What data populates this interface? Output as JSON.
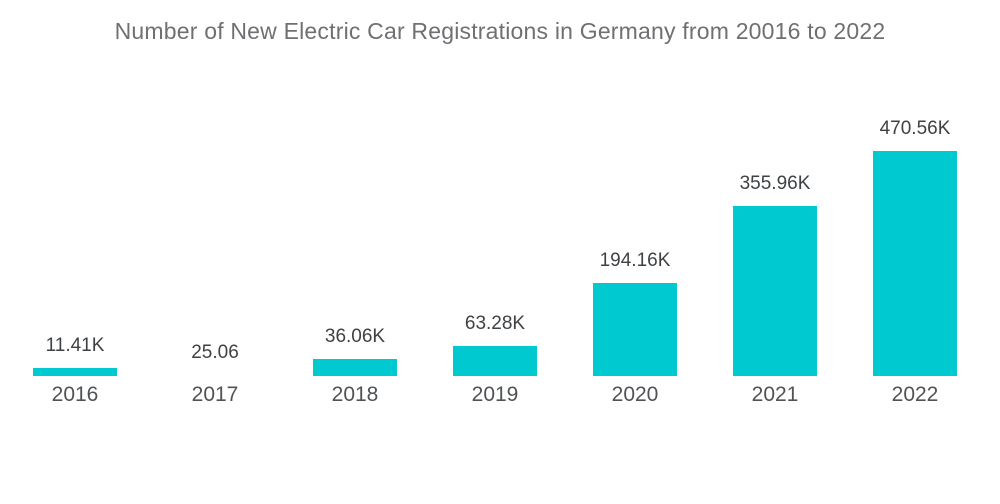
{
  "title": "Number of New Electric Car Registrations in Germany from 20016 to 2022",
  "colors": {
    "bar": "#00C9CF",
    "title_text": "#6E7073",
    "value_text": "#3F4245",
    "year_text": "#505356",
    "background": "#FFFFFF"
  },
  "chart_data": {
    "type": "bar",
    "title": "Number of New Electric Car Registrations in Germany from 20016 to 2022",
    "categories": [
      "2016",
      "2017",
      "2018",
      "2019",
      "2020",
      "2021",
      "2022"
    ],
    "values": [
      11.41,
      25.06,
      36.06,
      63.28,
      194.16,
      355.96,
      470.56
    ],
    "unit": "thousands (K)",
    "value_labels": [
      "11.41K",
      "25.06",
      "36.06K",
      "63.28K",
      "194.16K",
      "355.96K",
      "470.56K"
    ],
    "bar_visible": [
      true,
      false,
      true,
      true,
      true,
      true,
      true
    ],
    "xlabel": "",
    "ylabel": "",
    "ylim": [
      0,
      470.56
    ],
    "grid": false,
    "legend": false,
    "axis_lines": false
  }
}
